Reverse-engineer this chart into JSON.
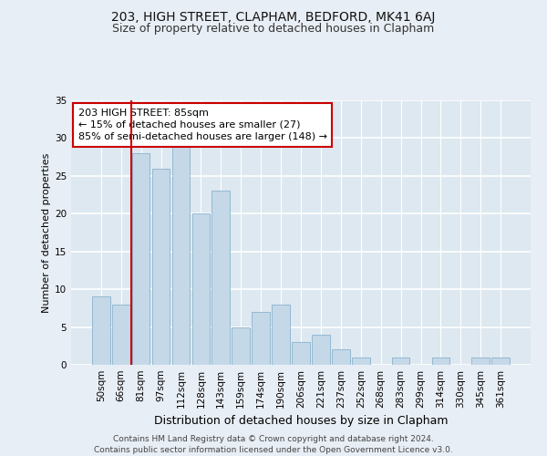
{
  "title1": "203, HIGH STREET, CLAPHAM, BEDFORD, MK41 6AJ",
  "title2": "Size of property relative to detached houses in Clapham",
  "xlabel": "Distribution of detached houses by size in Clapham",
  "ylabel": "Number of detached properties",
  "bin_labels": [
    "50sqm",
    "66sqm",
    "81sqm",
    "97sqm",
    "112sqm",
    "128sqm",
    "143sqm",
    "159sqm",
    "174sqm",
    "190sqm",
    "206sqm",
    "221sqm",
    "237sqm",
    "252sqm",
    "268sqm",
    "283sqm",
    "299sqm",
    "314sqm",
    "330sqm",
    "345sqm",
    "361sqm"
  ],
  "bar_values": [
    9,
    8,
    28,
    26,
    29,
    20,
    23,
    5,
    7,
    8,
    3,
    4,
    2,
    1,
    0,
    1,
    0,
    1,
    0,
    1,
    1
  ],
  "bar_color": "#c5d8e8",
  "bar_edge_color": "#7aaac8",
  "background_color": "#dde8f0",
  "fig_background_color": "#e8eef5",
  "grid_color": "#ffffff",
  "annotation_line_color": "#cc0000",
  "annotation_box_text": "203 HIGH STREET: 85sqm\n← 15% of detached houses are smaller (27)\n85% of semi-detached houses are larger (148) →",
  "annotation_box_color": "#ffffff",
  "annotation_box_edge_color": "#cc0000",
  "ylim": [
    0,
    35
  ],
  "yticks": [
    0,
    5,
    10,
    15,
    20,
    25,
    30,
    35
  ],
  "footer_text": "Contains HM Land Registry data © Crown copyright and database right 2024.\nContains public sector information licensed under the Open Government Licence v3.0.",
  "title1_fontsize": 10,
  "title2_fontsize": 9,
  "xlabel_fontsize": 9,
  "ylabel_fontsize": 8,
  "tick_fontsize": 7.5,
  "annotation_fontsize": 8,
  "footer_fontsize": 6.5
}
